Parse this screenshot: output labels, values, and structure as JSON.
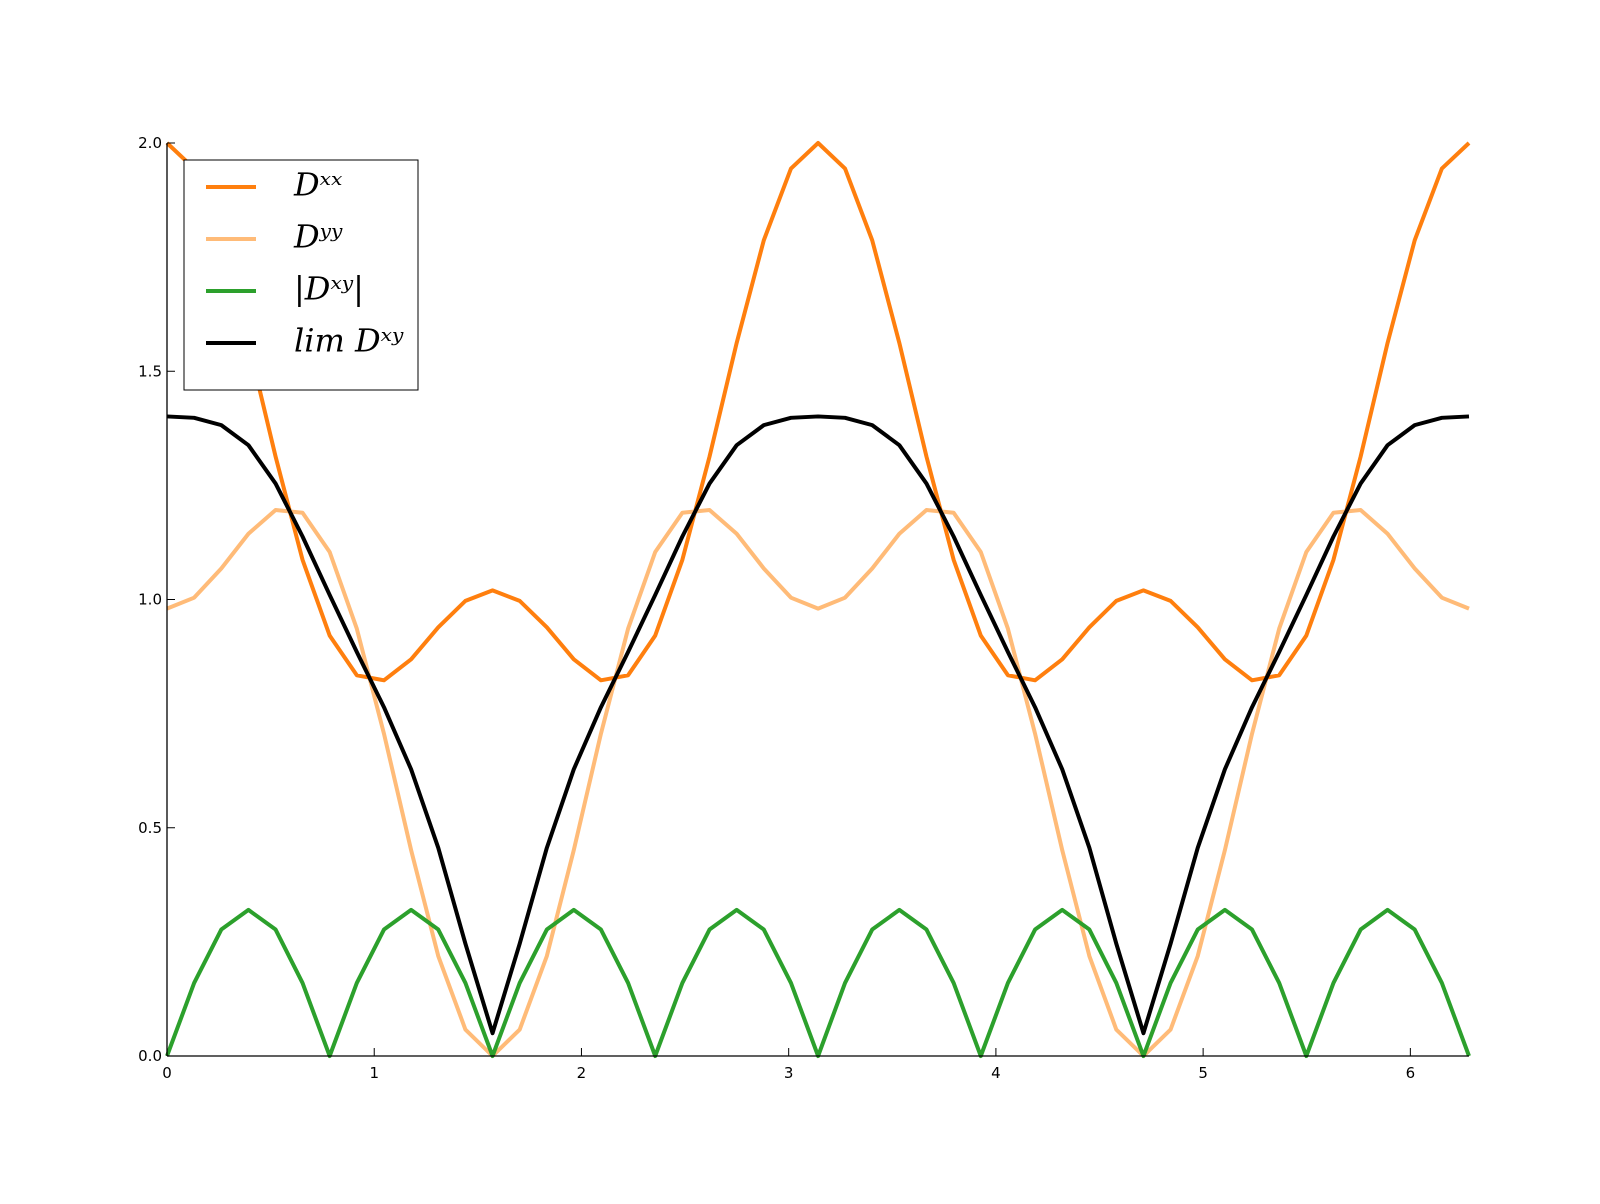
{
  "chart_data": {
    "type": "line",
    "x": [
      0,
      0.131,
      0.262,
      0.393,
      0.524,
      0.654,
      0.785,
      0.916,
      1.047,
      1.178,
      1.309,
      1.44,
      1.571,
      1.702,
      1.833,
      1.963,
      2.094,
      2.225,
      2.356,
      2.487,
      2.618,
      2.749,
      2.88,
      3.011,
      3.142,
      3.272,
      3.403,
      3.534,
      3.665,
      3.796,
      3.927,
      4.058,
      4.189,
      4.32,
      4.451,
      4.581,
      4.712,
      4.843,
      4.974,
      5.105,
      5.236,
      5.367,
      5.498,
      5.629,
      5.76,
      5.89,
      6.021,
      6.152,
      6.283
    ],
    "series": [
      {
        "name": "Dˣˣ",
        "color": "#ff7f0e",
        "values": [
          2.0,
          1.944,
          1.787,
          1.562,
          1.313,
          1.087,
          0.921,
          0.834,
          0.823,
          0.869,
          0.939,
          0.997,
          1.02,
          0.997,
          0.939,
          0.869,
          0.823,
          0.834,
          0.921,
          1.087,
          1.313,
          1.562,
          1.787,
          1.944,
          2.0,
          1.944,
          1.787,
          1.562,
          1.313,
          1.087,
          0.921,
          0.834,
          0.823,
          0.869,
          0.939,
          0.997,
          1.02,
          0.997,
          0.939,
          0.869,
          0.823,
          0.834,
          0.921,
          1.087,
          1.313,
          1.562,
          1.787,
          1.944,
          2.0
        ]
      },
      {
        "name": "Dʸʸ",
        "color": "#ffbb78",
        "values": [
          0.98,
          1.004,
          1.068,
          1.144,
          1.196,
          1.19,
          1.104,
          0.936,
          0.706,
          0.451,
          0.219,
          0.058,
          0.0,
          0.058,
          0.219,
          0.451,
          0.706,
          0.936,
          1.104,
          1.19,
          1.196,
          1.144,
          1.068,
          1.004,
          0.98,
          1.004,
          1.068,
          1.144,
          1.196,
          1.19,
          1.104,
          0.936,
          0.706,
          0.451,
          0.219,
          0.058,
          0.0,
          0.058,
          0.219,
          0.451,
          0.706,
          0.936,
          1.104,
          1.19,
          1.196,
          1.144,
          1.068,
          1.004,
          0.98
        ]
      },
      {
        "name": "|Dˣʸ|",
        "color": "#2ca02c",
        "values": [
          0,
          0.16,
          0.277,
          0.32,
          0.277,
          0.16,
          0,
          0.16,
          0.277,
          0.32,
          0.277,
          0.16,
          0,
          0.16,
          0.277,
          0.32,
          0.277,
          0.16,
          0,
          0.16,
          0.277,
          0.32,
          0.277,
          0.16,
          0,
          0.16,
          0.277,
          0.32,
          0.277,
          0.16,
          0,
          0.16,
          0.277,
          0.32,
          0.277,
          0.16,
          0,
          0.16,
          0.277,
          0.32,
          0.277,
          0.16,
          0,
          0.16,
          0.277,
          0.32,
          0.277,
          0.16,
          0
        ]
      },
      {
        "name": "lim Dˣʸ",
        "color": "#000000",
        "values": [
          1.401,
          1.398,
          1.382,
          1.338,
          1.254,
          1.138,
          1.01,
          0.885,
          0.764,
          0.628,
          0.456,
          0.246,
          0.05,
          0.246,
          0.456,
          0.628,
          0.764,
          0.885,
          1.01,
          1.138,
          1.254,
          1.338,
          1.382,
          1.398,
          1.401,
          1.398,
          1.382,
          1.338,
          1.254,
          1.138,
          1.01,
          0.885,
          0.764,
          0.628,
          0.456,
          0.246,
          0.05,
          0.246,
          0.456,
          0.628,
          0.764,
          0.885,
          1.01,
          1.138,
          1.254,
          1.338,
          1.382,
          1.398,
          1.401
        ]
      }
    ],
    "xlim": [
      0,
      6.283
    ],
    "xticks": [
      0,
      1,
      2,
      3,
      4,
      5,
      6
    ],
    "ylim": [
      0,
      2
    ],
    "yticks": [
      {
        "value": 0,
        "label": "0.0"
      },
      {
        "value": 0.5,
        "label": "0.5"
      },
      {
        "value": 1,
        "label": "1.0"
      },
      {
        "value": 1.5,
        "label": "1.5"
      },
      {
        "value": 2,
        "label": "2.0"
      }
    ],
    "grid": false,
    "legend": "upper left"
  }
}
